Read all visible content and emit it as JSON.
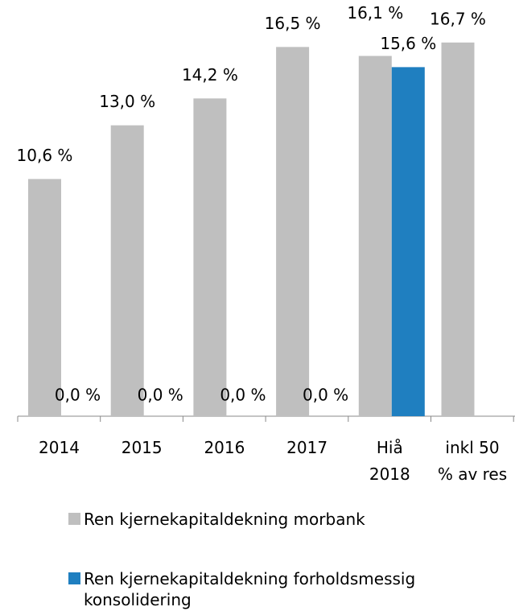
{
  "chart_data": {
    "type": "bar",
    "categories": [
      "2014",
      "2015",
      "2016",
      "2017",
      "Hiå\n2018",
      "inkl 50\n% av res"
    ],
    "series": [
      {
        "name": "Ren kjernekapitaldekning morbank",
        "color": "#bfbfbf",
        "values": [
          10.6,
          13.0,
          14.2,
          16.5,
          16.1,
          16.7
        ],
        "value_labels": [
          "10,6 %",
          "13,0 %",
          "14,2 %",
          "16,5 %",
          "16,1 %",
          "16,7 %"
        ]
      },
      {
        "name": "Ren kjernekapitaldekning forholdsmessig konsolidering",
        "color": "#1f7fc0",
        "values": [
          0,
          0,
          0,
          0,
          15.6,
          null
        ],
        "value_labels": [
          "0,0 %",
          "0,0 %",
          "0,0 %",
          "0,0 %",
          "15,6 %",
          null
        ]
      }
    ],
    "ylim": [
      0,
      18.6
    ]
  }
}
